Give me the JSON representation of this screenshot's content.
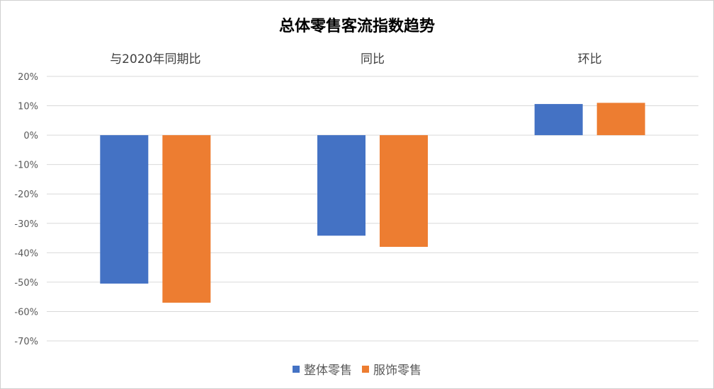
{
  "chart_data": {
    "type": "bar",
    "title": "总体零售客流指数趋势",
    "categories": [
      "与2020年同期比",
      "同比",
      "环比"
    ],
    "series": [
      {
        "name": "整体零售",
        "color": "#4472C4",
        "values": [
          -50.5,
          -34.2,
          10.6
        ]
      },
      {
        "name": "服饰零售",
        "color": "#ED7D31",
        "values": [
          -57.0,
          -38.0,
          11.0
        ]
      }
    ],
    "ylim": [
      -70,
      20
    ],
    "yticks": [
      20,
      10,
      0,
      -10,
      -20,
      -30,
      -40,
      -50,
      -60,
      -70
    ],
    "ytick_labels": [
      "20%",
      "10%",
      "0%",
      "-10%",
      "-20%",
      "-30%",
      "-40%",
      "-50%",
      "-60%",
      "-70%"
    ],
    "grid": true,
    "legend_position": "bottom"
  }
}
